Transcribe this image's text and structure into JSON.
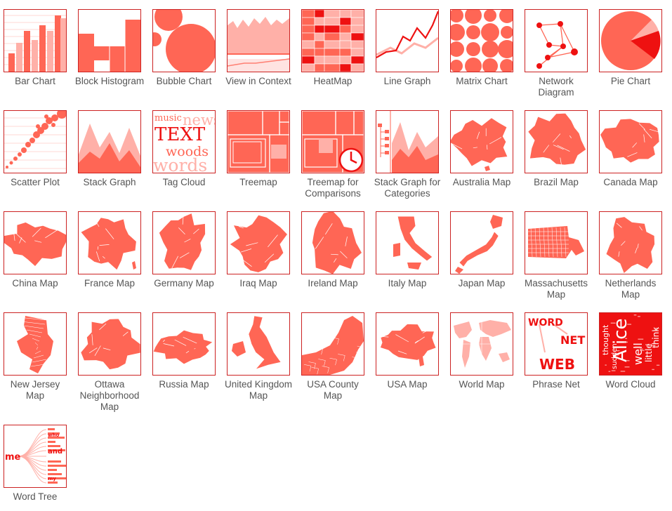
{
  "colors": {
    "accent": "#ff6655",
    "light": "#ffb0a8",
    "dark": "#ee1111",
    "border": "#cc2222",
    "label": "#555555"
  },
  "tiles": [
    {
      "label": "Bar Chart",
      "icon": "bar-chart-icon"
    },
    {
      "label": "Block Histogram",
      "icon": "block-histogram-icon"
    },
    {
      "label": "Bubble Chart",
      "icon": "bubble-chart-icon"
    },
    {
      "label": "View in Context",
      "icon": "view-in-context-icon"
    },
    {
      "label": "HeatMap",
      "icon": "heatmap-icon"
    },
    {
      "label": "Line Graph",
      "icon": "line-graph-icon"
    },
    {
      "label": "Matrix Chart",
      "icon": "matrix-chart-icon"
    },
    {
      "label": "Network Diagram",
      "icon": "network-diagram-icon"
    },
    {
      "label": "Pie Chart",
      "icon": "pie-chart-icon"
    },
    {
      "label": "Scatter Plot",
      "icon": "scatter-plot-icon"
    },
    {
      "label": "Stack Graph",
      "icon": "stack-graph-icon"
    },
    {
      "label": "Tag Cloud",
      "icon": "tag-cloud-icon",
      "words": [
        "music",
        "news",
        "TEXT",
        "woods",
        "words"
      ]
    },
    {
      "label": "Treemap",
      "icon": "treemap-icon"
    },
    {
      "label": "Treemap for Comparisons",
      "icon": "treemap-comparisons-icon"
    },
    {
      "label": "Stack Graph for Categories",
      "icon": "stack-graph-categories-icon"
    },
    {
      "label": "Australia Map",
      "icon": "australia-map-icon"
    },
    {
      "label": "Brazil Map",
      "icon": "brazil-map-icon"
    },
    {
      "label": "Canada Map",
      "icon": "canada-map-icon"
    },
    {
      "label": "China Map",
      "icon": "china-map-icon"
    },
    {
      "label": "France Map",
      "icon": "france-map-icon"
    },
    {
      "label": "Germany Map",
      "icon": "germany-map-icon"
    },
    {
      "label": "Iraq Map",
      "icon": "iraq-map-icon"
    },
    {
      "label": "Ireland Map",
      "icon": "ireland-map-icon"
    },
    {
      "label": "Italy Map",
      "icon": "italy-map-icon"
    },
    {
      "label": "Japan Map",
      "icon": "japan-map-icon"
    },
    {
      "label": "Massachusetts Map",
      "icon": "massachusetts-map-icon"
    },
    {
      "label": "Netherlands Map",
      "icon": "netherlands-map-icon"
    },
    {
      "label": "New Jersey Map",
      "icon": "new-jersey-map-icon"
    },
    {
      "label": "Ottawa Neighborhood Map",
      "icon": "ottawa-map-icon"
    },
    {
      "label": "Russia Map",
      "icon": "russia-map-icon"
    },
    {
      "label": "United Kingdom Map",
      "icon": "uk-map-icon"
    },
    {
      "label": "USA County Map",
      "icon": "usa-county-map-icon"
    },
    {
      "label": "USA Map",
      "icon": "usa-map-icon"
    },
    {
      "label": "World Map",
      "icon": "world-map-icon"
    },
    {
      "label": "Phrase Net",
      "icon": "phrase-net-icon",
      "words": [
        "WORD",
        "NET",
        "WEB"
      ]
    },
    {
      "label": "Word Cloud",
      "icon": "word-cloud-icon",
      "words": [
        "Alice",
        "thought",
        "well",
        "little",
        "think",
        "sudden"
      ]
    },
    {
      "label": "Word Tree",
      "icon": "word-tree-icon",
      "words": [
        "me",
        "who",
        "and",
        "my",
        "the",
        "to"
      ]
    }
  ]
}
